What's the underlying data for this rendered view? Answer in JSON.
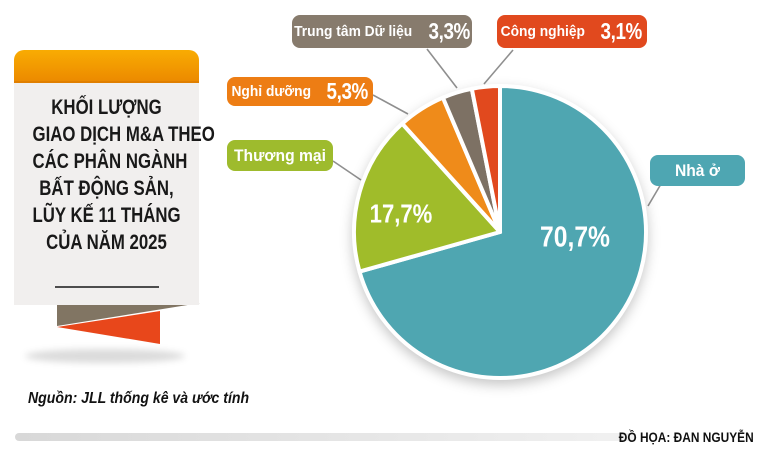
{
  "banner": {
    "title_lines": [
      "KHỐI LƯỢNG",
      "GIAO DỊCH M&A THEO",
      "CÁC PHÂN NGÀNH",
      "BẤT ĐỘNG SẢN,",
      "LŨY KẾ 11 THÁNG",
      "CỦA NĂM 2025"
    ],
    "header_color_top": "#F9AC02",
    "header_color_bottom": "#EC8A00",
    "body_color": "#F1EFEE",
    "ribbon_taupe_color": "#817563",
    "ribbon_red_color": "#E8471B"
  },
  "source_note": "Nguồn: JLL thống kê và ước tính",
  "credit": "ĐỒ HỌA: ĐAN NGUYỄN",
  "chart_data": {
    "type": "pie",
    "title": "Khối lượng giao dịch M&A theo các phân ngành bất động sản, lũy kế 11 tháng của năm 2025",
    "unit": "%",
    "start_angle_deg": 0,
    "direction": "clockwise",
    "legend_position": "callout-labels",
    "slices": [
      {
        "label": "Nhà ở",
        "value": 70.7,
        "display": "70,7%",
        "color": "#4FA6B1"
      },
      {
        "label": "Thương mại",
        "value": 17.7,
        "display": "17,7%",
        "color": "#A0BC2A"
      },
      {
        "label": "Nghỉ dưỡng",
        "value": 5.3,
        "display": "5,3%",
        "color": "#EF8B1A"
      },
      {
        "label": "Trung tâm Dữ liệu",
        "value": 3.3,
        "display": "3,3%",
        "color": "#7D7164"
      },
      {
        "label": "Công nghiệp",
        "value": 3.1,
        "display": "3,1%",
        "color": "#E1491E"
      }
    ]
  }
}
